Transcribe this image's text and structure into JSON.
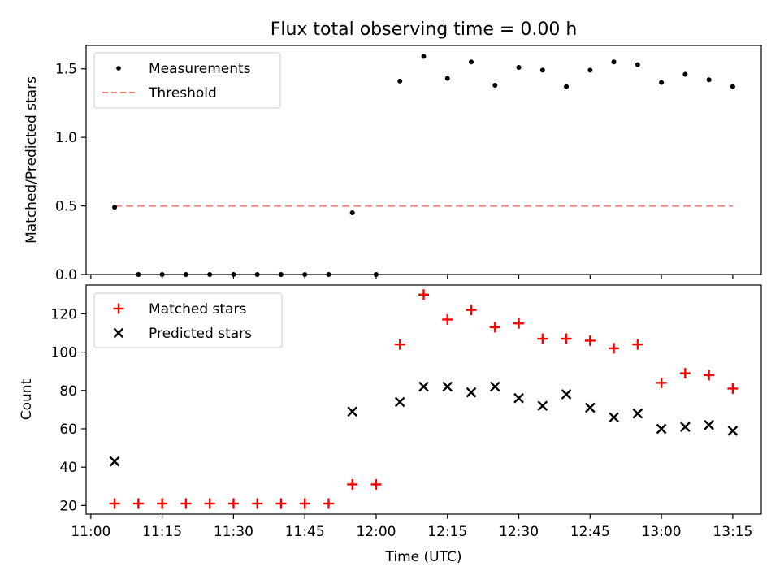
{
  "title": "Flux total observing time = 0.00 h",
  "x_axis": {
    "label": "Time (UTC)",
    "tick_labels": [
      "11:00",
      "11:15",
      "11:30",
      "11:45",
      "12:00",
      "12:15",
      "12:30",
      "12:45",
      "13:00",
      "13:15"
    ],
    "range": [
      "10:59",
      "13:21"
    ]
  },
  "colors": {
    "measurements": "#000000",
    "threshold": "#ff7f7f",
    "matched": "#ff0000",
    "predicted": "#000000"
  },
  "chart_data": [
    {
      "type": "scatter",
      "panel": "top",
      "ylabel": "Matched/Predicted stars",
      "ylim": [
        0.0,
        1.67
      ],
      "yticks": [
        0.0,
        0.5,
        1.0,
        1.5
      ],
      "ytick_labels": [
        "0.0",
        "0.5",
        "1.0",
        "1.5"
      ],
      "grid": false,
      "legend_position": "top-left",
      "series": [
        {
          "name": "Measurements",
          "marker": "dot",
          "x": [
            "11:05",
            "11:10",
            "11:15",
            "11:20",
            "11:25",
            "11:30",
            "11:35",
            "11:40",
            "11:45",
            "11:50",
            "11:55",
            "12:00",
            "12:05",
            "12:10",
            "12:15",
            "12:20",
            "12:25",
            "12:30",
            "12:35",
            "12:40",
            "12:45",
            "12:50",
            "12:55",
            "13:00",
            "13:05",
            "13:10",
            "13:15"
          ],
          "y": [
            0.49,
            0.0,
            0.0,
            0.0,
            0.0,
            0.0,
            0.0,
            0.0,
            0.0,
            0.0,
            0.45,
            0.0,
            1.41,
            1.59,
            1.43,
            1.55,
            1.38,
            1.51,
            1.49,
            1.37,
            1.49,
            1.55,
            1.53,
            1.4,
            1.46,
            1.42,
            1.37
          ]
        },
        {
          "name": "Threshold",
          "line": "dashed",
          "x": [
            "11:05",
            "13:15"
          ],
          "y": [
            0.5,
            0.5
          ]
        }
      ]
    },
    {
      "type": "scatter",
      "panel": "bottom",
      "ylabel": "Count",
      "ylim": [
        15.5,
        135
      ],
      "yticks": [
        20,
        40,
        60,
        80,
        100,
        120
      ],
      "ytick_labels": [
        "20",
        "40",
        "60",
        "80",
        "100",
        "120"
      ],
      "grid": false,
      "legend_position": "top-left",
      "series": [
        {
          "name": "Matched stars",
          "marker": "plus",
          "x": [
            "11:05",
            "11:10",
            "11:15",
            "11:20",
            "11:25",
            "11:30",
            "11:35",
            "11:40",
            "11:45",
            "11:50",
            "11:55",
            "12:00",
            "12:05",
            "12:10",
            "12:15",
            "12:20",
            "12:25",
            "12:30",
            "12:35",
            "12:40",
            "12:45",
            "12:50",
            "12:55",
            "13:00",
            "13:05",
            "13:10",
            "13:15"
          ],
          "y": [
            21,
            21,
            21,
            21,
            21,
            21,
            21,
            21,
            21,
            21,
            31,
            31,
            104,
            130,
            117,
            122,
            113,
            115,
            107,
            107,
            106,
            102,
            104,
            84,
            89,
            88,
            81
          ]
        },
        {
          "name": "Predicted stars",
          "marker": "x",
          "x": [
            "11:05",
            "11:55",
            "12:05",
            "12:10",
            "12:15",
            "12:20",
            "12:25",
            "12:30",
            "12:35",
            "12:40",
            "12:45",
            "12:50",
            "12:55",
            "13:00",
            "13:05",
            "13:10",
            "13:15"
          ],
          "y": [
            43,
            69,
            74,
            82,
            82,
            79,
            82,
            76,
            72,
            78,
            71,
            66,
            68,
            60,
            61,
            62,
            59
          ]
        }
      ]
    }
  ]
}
